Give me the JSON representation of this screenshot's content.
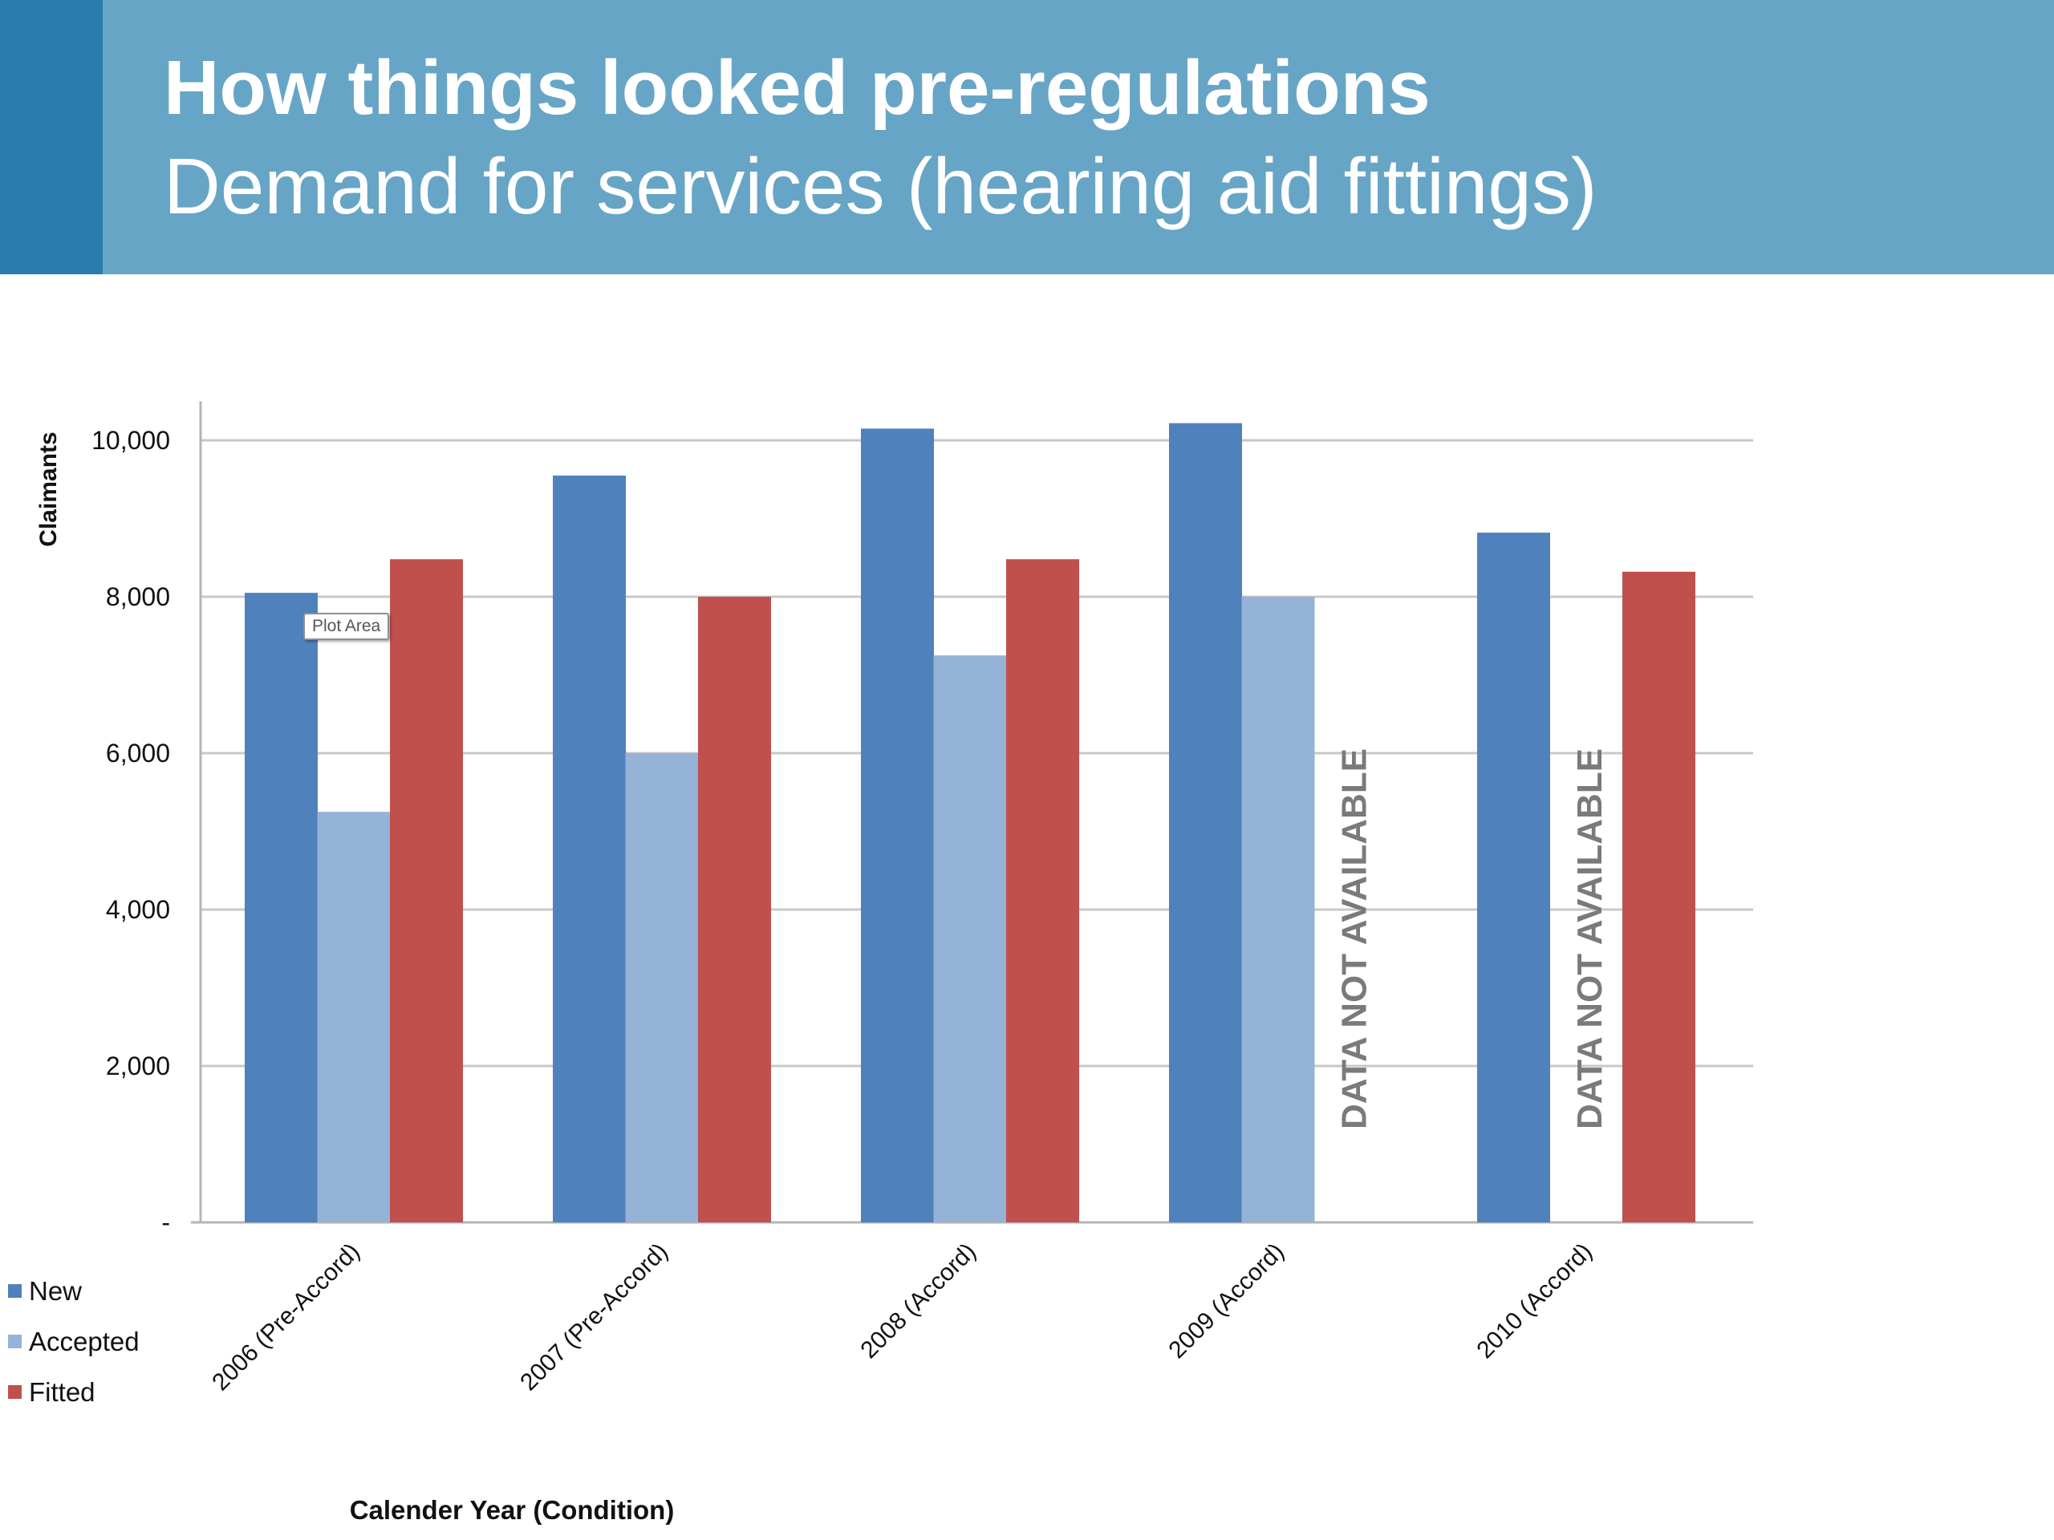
{
  "header": {
    "title": "How things looked pre-regulations",
    "subtitle": "Demand for services (hearing aid fittings)"
  },
  "tooltip": "Plot Area",
  "colors": {
    "new": "#4f81bd",
    "accepted": "#95b3d7",
    "fitted": "#c0504d",
    "header": "#67a5c6",
    "header_accent": "#2b7db0"
  },
  "chart_data": {
    "type": "bar",
    "categories": [
      "2006 (Pre-Accord)",
      "2007 (Pre-Accord)",
      "2008 (Accord)",
      "2009 (Accord)",
      "2010 (Accord)"
    ],
    "series": [
      {
        "name": "New",
        "values": [
          8050,
          9550,
          10150,
          10220,
          8820
        ]
      },
      {
        "name": "Accepted",
        "values": [
          5250,
          6000,
          7250,
          8000,
          null
        ]
      },
      {
        "name": "Fitted",
        "values": [
          8480,
          8000,
          8480,
          null,
          8320
        ]
      }
    ],
    "missing_label": "DATA NOT AVAILABLE",
    "xlabel": "Calender Year (Condition)",
    "ylabel": "Claimants",
    "ylim": [
      0,
      10500
    ],
    "yticks": [
      0,
      2000,
      4000,
      6000,
      8000,
      10000
    ],
    "ytick_labels": [
      "-",
      "2,000",
      "4,000",
      "6,000",
      "8,000",
      "10,000"
    ],
    "grid": true,
    "legend": "bottom-left"
  }
}
